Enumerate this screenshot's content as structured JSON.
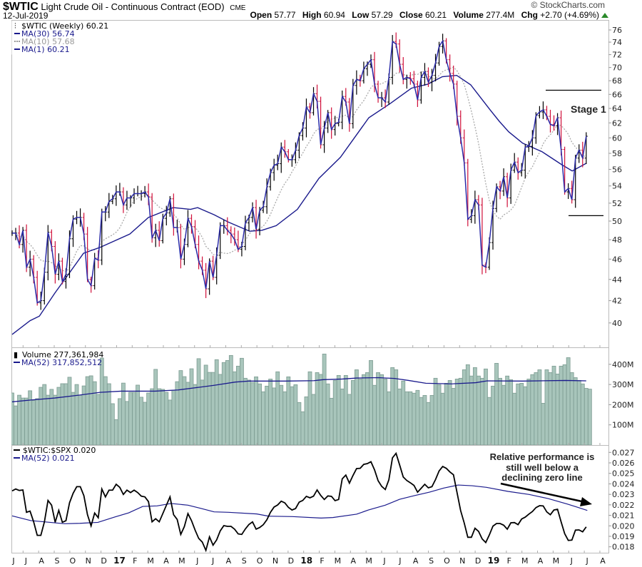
{
  "header": {
    "symbol": "$WTIC",
    "name": "Light Crude Oil - Continuous Contract (EOD)",
    "exchange": "CME",
    "date": "12-Jul-2019",
    "watermark": "© StockCharts.com",
    "quote": {
      "open_label": "Open",
      "open": "57.77",
      "high_label": "High",
      "high": "60.94",
      "low_label": "Low",
      "low": "57.29",
      "close_label": "Close",
      "close": "60.21",
      "volume_label": "Volume",
      "volume": "277.4M",
      "chg_label": "Chg",
      "chg": "+2.70 (+4.69%)"
    }
  },
  "legends": {
    "price": "$WTIC (Weekly) 60.21",
    "ma30": "MA(30) 56.74",
    "ma10": "MA(10) 57.68",
    "ma1": "MA(1) 60.21",
    "volume": "Volume 277,361,984",
    "volume_ma": "MA(52) 317,852,512",
    "ratio": "$WTIC:$SPX 0.020",
    "ratio_ma": "MA(52) 0.021"
  },
  "annotations": {
    "stage": "Stage 1",
    "stage_levels": [
      66.6,
      50.6
    ],
    "relative": [
      "Relative performance is",
      "still well below a",
      "declining zero line"
    ]
  },
  "colors": {
    "up_bar": "#000000",
    "down_bar": "#d0103a",
    "ma_line": "#1a1a8c",
    "ma10": "#aaaaaa",
    "volume_fill": "#a8c5bb",
    "volume_stroke": "#7d9c92",
    "ratio_line": "#000000",
    "up_arrow": "#2a8a2a"
  },
  "x_axis": {
    "labels": [
      "J",
      "J",
      "A",
      "S",
      "O",
      "N",
      "D",
      "17",
      "F",
      "M",
      "A",
      "M",
      "J",
      "J",
      "A",
      "S",
      "O",
      "N",
      "D",
      "18",
      "F",
      "M",
      "A",
      "M",
      "J",
      "J",
      "A",
      "S",
      "O",
      "N",
      "D",
      "19",
      "F",
      "M",
      "A",
      "M",
      "J",
      "J",
      "A"
    ],
    "year_labels": [
      "17",
      "18",
      "19"
    ]
  },
  "chart_data": [
    {
      "type": "ohlc",
      "title": "$WTIC (Weekly)",
      "scale": "log",
      "frequency": "weekly",
      "ylim": [
        38,
        77.5
      ],
      "yticks": [
        40,
        42,
        44,
        46,
        48,
        50,
        52,
        54,
        56,
        58,
        60,
        62,
        64,
        66,
        68,
        70,
        72,
        74,
        76
      ],
      "closes": [
        48.7,
        48.7,
        47.5,
        49.0,
        45.2,
        46.0,
        44.2,
        41.8,
        42.0,
        44.7,
        48.8,
        47.3,
        44.5,
        45.8,
        43.8,
        44.5,
        48.1,
        50.2,
        50.4,
        50.4,
        48.6,
        44.0,
        43.4,
        46.1,
        45.9,
        51.0,
        51.0,
        52.2,
        52.5,
        53.3,
        53.3,
        51.8,
        52.6,
        52.6,
        53.1,
        53.1,
        53.1,
        53.3,
        52.7,
        48.2,
        49.0,
        47.9,
        50.3,
        50.9,
        52.5,
        49.3,
        49.3,
        46.0,
        47.5,
        50.3,
        49.4,
        47.5,
        45.8,
        44.9,
        43.1,
        45.8,
        44.2,
        46.4,
        49.5,
        49.5,
        49.0,
        48.6,
        48.0,
        47.0,
        47.3,
        49.8,
        50.4,
        51.5,
        49.1,
        51.2,
        51.6,
        53.9,
        55.6,
        56.5,
        56.7,
        58.8,
        58.2,
        57.2,
        57.2,
        58.4,
        60.3,
        61.3,
        64.2,
        63.4,
        66.1,
        65.0,
        59.1,
        61.3,
        63.4,
        61.1,
        61.9,
        62.1,
        65.7,
        64.9,
        61.9,
        67.3,
        68.2,
        68.0,
        69.8,
        70.5,
        71.2,
        67.5,
        65.5,
        65.5,
        64.9,
        68.5,
        74.1,
        73.7,
        70.5,
        68.2,
        68.5,
        68.3,
        67.5,
        65.2,
        68.5,
        69.4,
        67.8,
        68.8,
        70.7,
        73.3,
        74.2,
        71.2,
        69.1,
        67.5,
        62.9,
        60.0,
        56.8,
        50.2,
        50.6,
        52.4,
        51.8,
        45.4,
        45.2,
        47.7,
        51.4,
        53.9,
        53.4,
        55.1,
        52.6,
        55.9,
        56.9,
        55.6,
        55.9,
        58.8,
        58.9,
        60.0,
        63.0,
        63.5,
        63.8,
        62.9,
        61.8,
        61.6,
        62.7,
        58.5,
        53.3,
        53.7,
        52.4,
        57.4,
        58.4,
        57.4,
        60.21
      ],
      "ma30_vertices": [
        [
          0,
          39.0
        ],
        [
          5,
          40.2
        ],
        [
          7.6,
          40.6
        ],
        [
          11.9,
          42.7
        ],
        [
          15.9,
          44.6
        ],
        [
          19.9,
          46.6
        ],
        [
          24.5,
          47.2
        ],
        [
          32.8,
          48.6
        ],
        [
          38,
          50.4
        ],
        [
          44.9,
          51.5
        ],
        [
          49.7,
          51.3
        ],
        [
          51.7,
          51.5
        ],
        [
          56.3,
          50.7
        ],
        [
          60.2,
          49.9
        ],
        [
          66.2,
          48.9
        ],
        [
          69.6,
          49.0
        ],
        [
          73.6,
          49.5
        ],
        [
          79.5,
          51.3
        ],
        [
          85.5,
          54.9
        ],
        [
          91.5,
          57.5
        ],
        [
          99.4,
          62.7
        ],
        [
          105.4,
          64.7
        ],
        [
          111.3,
          66.9
        ],
        [
          115.9,
          67.5
        ],
        [
          119.9,
          68.6
        ],
        [
          123.9,
          68.8
        ],
        [
          127.8,
          67.4
        ],
        [
          133.2,
          63.8
        ],
        [
          135.8,
          62.2
        ],
        [
          138.4,
          60.8
        ],
        [
          142.3,
          59.3
        ],
        [
          147.7,
          58.2
        ],
        [
          153.1,
          56.6
        ],
        [
          156.1,
          55.8
        ],
        [
          160,
          56.74
        ]
      ],
      "ma10_last": 57.68
    },
    {
      "type": "bar",
      "title": "Volume",
      "unit": "M",
      "yticks": [
        100,
        200,
        300,
        400
      ],
      "ytick_labels": [
        "100M",
        "200M",
        "300M",
        "400M"
      ],
      "values": [
        258,
        194,
        247,
        233,
        233,
        269,
        221,
        230,
        286,
        300,
        247,
        276,
        247,
        286,
        304,
        304,
        336,
        261,
        300,
        247,
        293,
        339,
        343,
        314,
        251,
        431,
        339,
        304,
        205,
        126,
        230,
        307,
        216,
        261,
        261,
        297,
        237,
        212,
        258,
        279,
        375,
        279,
        276,
        261,
        223,
        272,
        314,
        369,
        339,
        311,
        378,
        300,
        428,
        322,
        396,
        360,
        360,
        423,
        350,
        409,
        419,
        444,
        363,
        391,
        430,
        331,
        322,
        310,
        338,
        303,
        264,
        292,
        327,
        283,
        363,
        296,
        264,
        338,
        289,
        299,
        211,
        165,
        239,
        363,
        251,
        359,
        350,
        451,
        303,
        232,
        320,
        345,
        278,
        345,
        251,
        320,
        373,
        327,
        349,
        359,
        419,
        296,
        359,
        349,
        327,
        264,
        384,
        373,
        278,
        317,
        264,
        264,
        257,
        271,
        236,
        246,
        211,
        246,
        331,
        299,
        257,
        306,
        320,
        281,
        327,
        331,
        373,
        398,
        342,
        384,
        342,
        331,
        377,
        236,
        292,
        405,
        331,
        296,
        342,
        324,
        257,
        303,
        306,
        289,
        327,
        349,
        359,
        373,
        207,
        373,
        359,
        391,
        352,
        391,
        398,
        433,
        359,
        334,
        320,
        303,
        281,
        277
      ],
      "ma52_vertices": [
        [
          0,
          214
        ],
        [
          5.2,
          223
        ],
        [
          11.9,
          233
        ],
        [
          18.5,
          247
        ],
        [
          24.5,
          261
        ],
        [
          30.4,
          267
        ],
        [
          39.8,
          267
        ],
        [
          46.3,
          273
        ],
        [
          52.9,
          288
        ],
        [
          56.3,
          296
        ],
        [
          62.2,
          312
        ],
        [
          66.2,
          317
        ],
        [
          76.1,
          317
        ],
        [
          84.1,
          319
        ],
        [
          86.7,
          324
        ],
        [
          92,
          327
        ],
        [
          96,
          332
        ],
        [
          102,
          334
        ],
        [
          106.6,
          330
        ],
        [
          110.5,
          320
        ],
        [
          115.3,
          306
        ],
        [
          122.5,
          303
        ],
        [
          129.2,
          309
        ],
        [
          132.4,
          318
        ],
        [
          142.3,
          317
        ],
        [
          154.3,
          320
        ],
        [
          160,
          318
        ]
      ]
    },
    {
      "type": "line",
      "title": "$WTIC:$SPX",
      "yticks": [
        0.018,
        0.019,
        0.02,
        0.021,
        0.022,
        0.023,
        0.024,
        0.025,
        0.026,
        0.027
      ],
      "values": [
        0.02333,
        0.02351,
        0.02337,
        0.02342,
        0.02129,
        0.0214,
        0.02038,
        0.01909,
        0.01909,
        0.02038,
        0.02242,
        0.02197,
        0.02034,
        0.02147,
        0.02034,
        0.02049,
        0.0222,
        0.0231,
        0.02373,
        0.02373,
        0.02287,
        0.02106,
        0.01999,
        0.02122,
        0.02077,
        0.02351,
        0.02276,
        0.0234,
        0.0234,
        0.02396,
        0.02367,
        0.02299,
        0.0234,
        0.02317,
        0.0234,
        0.02317,
        0.02283,
        0.02276,
        0.02231,
        0.02038,
        0.02068,
        0.02038,
        0.02117,
        0.02197,
        0.02276,
        0.02106,
        0.02061,
        0.01918,
        0.01993,
        0.02117,
        0.02049,
        0.01959,
        0.0188,
        0.01845,
        0.01766,
        0.01895,
        0.01816,
        0.01866,
        0.01952,
        0.02002,
        0.01995,
        0.01995,
        0.01968,
        0.01923,
        0.01918,
        0.0197,
        0.02013,
        0.02038,
        0.01968,
        0.01984,
        0.02011,
        0.02058,
        0.02129,
        0.02179,
        0.02199,
        0.02235,
        0.02219,
        0.02176,
        0.02151,
        0.02165,
        0.02226,
        0.02242,
        0.02281,
        0.02267,
        0.02283,
        0.02342,
        0.0229,
        0.02251,
        0.02285,
        0.02281,
        0.0224,
        0.02251,
        0.02448,
        0.02484,
        0.02407,
        0.0248,
        0.02546,
        0.02548,
        0.02586,
        0.02593,
        0.02611,
        0.02534,
        0.0243,
        0.02376,
        0.02346,
        0.02439,
        0.02648,
        0.02691,
        0.0258,
        0.02466,
        0.02432,
        0.0241,
        0.02385,
        0.02321,
        0.02358,
        0.02396,
        0.02362,
        0.02373,
        0.02441,
        0.02523,
        0.02566,
        0.02548,
        0.02514,
        0.02487,
        0.02317,
        0.02145,
        0.02027,
        0.01891,
        0.01891,
        0.01977,
        0.01947,
        0.01875,
        0.01841,
        0.01913,
        0.01997,
        0.02022,
        0.02022,
        0.02006,
        0.01968,
        0.02029,
        0.02031,
        0.02011,
        0.02065,
        0.02083,
        0.02111,
        0.02136,
        0.02174,
        0.02192,
        0.0219,
        0.02133,
        0.02106,
        0.02151,
        0.02158,
        0.02038,
        0.01925,
        0.01861,
        0.01864,
        0.01959,
        0.01961,
        0.01943,
        0.0199
      ],
      "ma52_vertices": [
        [
          0,
          0.02095
        ],
        [
          5.2,
          0.0205
        ],
        [
          9,
          0.02038
        ],
        [
          14.6,
          0.0202
        ],
        [
          18.9,
          0.02024
        ],
        [
          23.9,
          0.02033
        ],
        [
          28.5,
          0.02083
        ],
        [
          32.5,
          0.02124
        ],
        [
          36.4,
          0.02185
        ],
        [
          40.4,
          0.0219
        ],
        [
          44.3,
          0.02213
        ],
        [
          49,
          0.02197
        ],
        [
          52.3,
          0.02169
        ],
        [
          56.3,
          0.02133
        ],
        [
          60.3,
          0.02129
        ],
        [
          68.2,
          0.02113
        ],
        [
          71.5,
          0.02092
        ],
        [
          78.1,
          0.02088
        ],
        [
          86.1,
          0.02074
        ],
        [
          89.4,
          0.02079
        ],
        [
          96,
          0.02111
        ],
        [
          99.3,
          0.02151
        ],
        [
          104,
          0.02197
        ],
        [
          108,
          0.02253
        ],
        [
          112,
          0.02287
        ],
        [
          116.3,
          0.02321
        ],
        [
          120.3,
          0.0236
        ],
        [
          124.3,
          0.02389
        ],
        [
          128.2,
          0.02382
        ],
        [
          132.2,
          0.02367
        ],
        [
          138.2,
          0.02328
        ],
        [
          144.1,
          0.02299
        ],
        [
          149.4,
          0.0226
        ],
        [
          154.7,
          0.02208
        ],
        [
          157.4,
          0.02179
        ],
        [
          160.3,
          0.02147
        ]
      ]
    }
  ]
}
